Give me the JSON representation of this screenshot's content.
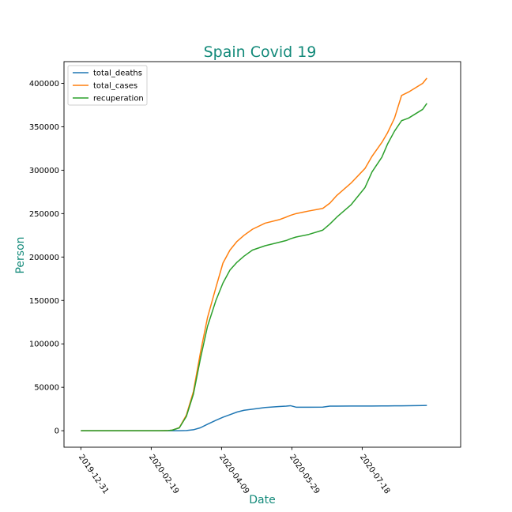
{
  "chart_data": {
    "type": "line",
    "title": "Spain Covid 19",
    "xlabel": "Date",
    "ylabel": "Person",
    "title_color": "#138a7a",
    "label_color": "#138a7a",
    "x_tick_labels": [
      "2019-12-31",
      "2020-02-19",
      "2020-04-09",
      "2020-05-29",
      "2020-07-18"
    ],
    "x_ticks": [
      "2019-12-31",
      "2020-02-19",
      "2020-04-09",
      "2020-05-29",
      "2020-07-18"
    ],
    "y_ticks": [
      0,
      50000,
      100000,
      150000,
      200000,
      250000,
      300000,
      350000,
      400000
    ],
    "y_tick_labels": [
      "0",
      "50000",
      "100000",
      "150000",
      "200000",
      "250000",
      "300000",
      "350000",
      "400000"
    ],
    "xlim": [
      "2019-12-19",
      "2020-09-26"
    ],
    "ylim": [
      -19000,
      425000
    ],
    "grid": false,
    "legend_position": "top-left",
    "x": [
      "2019-12-31",
      "2020-01-31",
      "2020-02-20",
      "2020-02-25",
      "2020-03-01",
      "2020-03-05",
      "2020-03-10",
      "2020-03-15",
      "2020-03-20",
      "2020-03-25",
      "2020-03-30",
      "2020-04-05",
      "2020-04-10",
      "2020-04-15",
      "2020-04-20",
      "2020-04-25",
      "2020-05-01",
      "2020-05-10",
      "2020-05-20",
      "2020-05-25",
      "2020-05-28",
      "2020-06-01",
      "2020-06-10",
      "2020-06-20",
      "2020-06-25",
      "2020-06-30",
      "2020-07-10",
      "2020-07-20",
      "2020-07-25",
      "2020-08-01",
      "2020-08-05",
      "2020-08-10",
      "2020-08-15",
      "2020-08-20",
      "2020-08-25",
      "2020-08-30",
      "2020-09-02"
    ],
    "series": [
      {
        "name": "total_deaths",
        "color": "#1f77b4",
        "values": [
          0,
          0,
          0,
          0,
          0,
          10,
          30,
          250,
          1100,
          3400,
          7400,
          12000,
          15500,
          18500,
          21500,
          23500,
          24800,
          26700,
          27800,
          28300,
          28800,
          27100,
          27100,
          27200,
          28300,
          28300,
          28400,
          28400,
          28400,
          28500,
          28500,
          28600,
          28700,
          28800,
          28900,
          29000,
          29100
        ]
      },
      {
        "name": "total_cases",
        "color": "#ff7f0e",
        "values": [
          0,
          0,
          0,
          0,
          50,
          700,
          3500,
          18000,
          45000,
          90000,
          130000,
          165000,
          193000,
          208000,
          218000,
          225000,
          232000,
          239000,
          243000,
          246000,
          248000,
          250000,
          253000,
          256000,
          262000,
          271000,
          285000,
          302000,
          316000,
          332000,
          343000,
          360000,
          386000,
          390000,
          395000,
          400000,
          406000
        ]
      },
      {
        "name": "recuperation",
        "color": "#2ca02c",
        "values": [
          0,
          0,
          0,
          0,
          50,
          650,
          3300,
          16500,
          42000,
          83000,
          120000,
          150000,
          170000,
          185000,
          194000,
          201000,
          208000,
          213000,
          217000,
          219000,
          221000,
          223000,
          226000,
          231000,
          238000,
          246000,
          260000,
          280000,
          298000,
          315000,
          330000,
          345000,
          357000,
          360000,
          365000,
          370000,
          377000
        ]
      }
    ]
  }
}
